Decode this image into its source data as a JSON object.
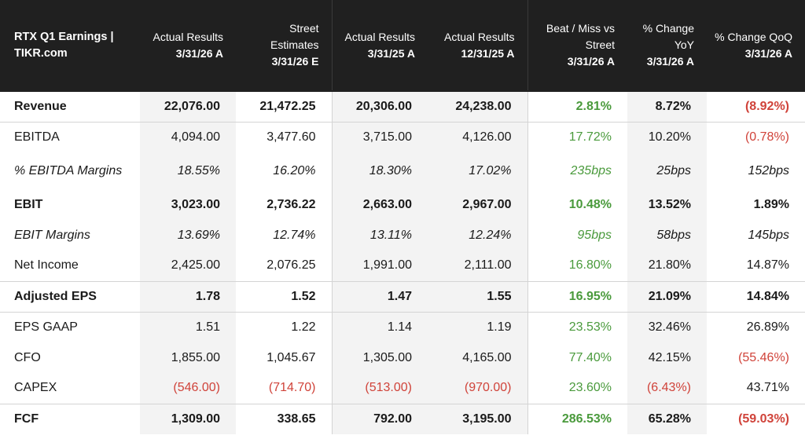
{
  "header": {
    "title": "RTX Q1 Earnings | TIKR.com",
    "columns": [
      {
        "label": "Actual Results",
        "period": "3/31/26 A"
      },
      {
        "label": "Street Estimates",
        "period": "3/31/26 E"
      },
      {
        "label": "Actual Results",
        "period": "3/31/25 A"
      },
      {
        "label": "Actual Results",
        "period": "12/31/25 A"
      },
      {
        "label": "Beat / Miss vs Street",
        "period": "3/31/26 A"
      },
      {
        "label": "% Change YoY",
        "period": "3/31/26 A"
      },
      {
        "label": "% Change QoQ",
        "period": "3/31/26 A"
      }
    ]
  },
  "rows": [
    {
      "label": "Revenue",
      "values": [
        "22,076.00",
        "21,472.25",
        "20,306.00",
        "24,238.00",
        "2.81%",
        "8.72%",
        "(8.92%)"
      ]
    },
    {
      "label": "EBITDA",
      "values": [
        "4,094.00",
        "3,477.60",
        "3,715.00",
        "4,126.00",
        "17.72%",
        "10.20%",
        "(0.78%)"
      ]
    },
    {
      "label": "% EBITDA Margins",
      "values": [
        "18.55%",
        "16.20%",
        "18.30%",
        "17.02%",
        "235bps",
        "25bps",
        "152bps"
      ]
    },
    {
      "label": "EBIT",
      "values": [
        "3,023.00",
        "2,736.22",
        "2,663.00",
        "2,967.00",
        "10.48%",
        "13.52%",
        "1.89%"
      ]
    },
    {
      "label": "EBIT Margins",
      "values": [
        "13.69%",
        "12.74%",
        "13.11%",
        "12.24%",
        "95bps",
        "58bps",
        "145bps"
      ]
    },
    {
      "label": "Net Income",
      "values": [
        "2,425.00",
        "2,076.25",
        "1,991.00",
        "2,111.00",
        "16.80%",
        "21.80%",
        "14.87%"
      ]
    },
    {
      "label": "Adjusted EPS",
      "values": [
        "1.78",
        "1.52",
        "1.47",
        "1.55",
        "16.95%",
        "21.09%",
        "14.84%"
      ]
    },
    {
      "label": "EPS GAAP",
      "values": [
        "1.51",
        "1.22",
        "1.14",
        "1.19",
        "23.53%",
        "32.46%",
        "26.89%"
      ]
    },
    {
      "label": "CFO",
      "values": [
        "1,855.00",
        "1,045.67",
        "1,305.00",
        "4,165.00",
        "77.40%",
        "42.15%",
        "(55.46%)"
      ]
    },
    {
      "label": "CAPEX",
      "values": [
        "(546.00)",
        "(714.70)",
        "(513.00)",
        "(970.00)",
        "23.60%",
        "(6.43%)",
        "43.71%"
      ]
    },
    {
      "label": "FCF",
      "values": [
        "1,309.00",
        "338.65",
        "792.00",
        "3,195.00",
        "286.53%",
        "65.28%",
        "(59.03%)"
      ]
    }
  ],
  "colors": {
    "header_bg": "#202020",
    "positive": "#4a9a3c",
    "negative": "#d0433a",
    "shade": "#f3f3f3"
  }
}
